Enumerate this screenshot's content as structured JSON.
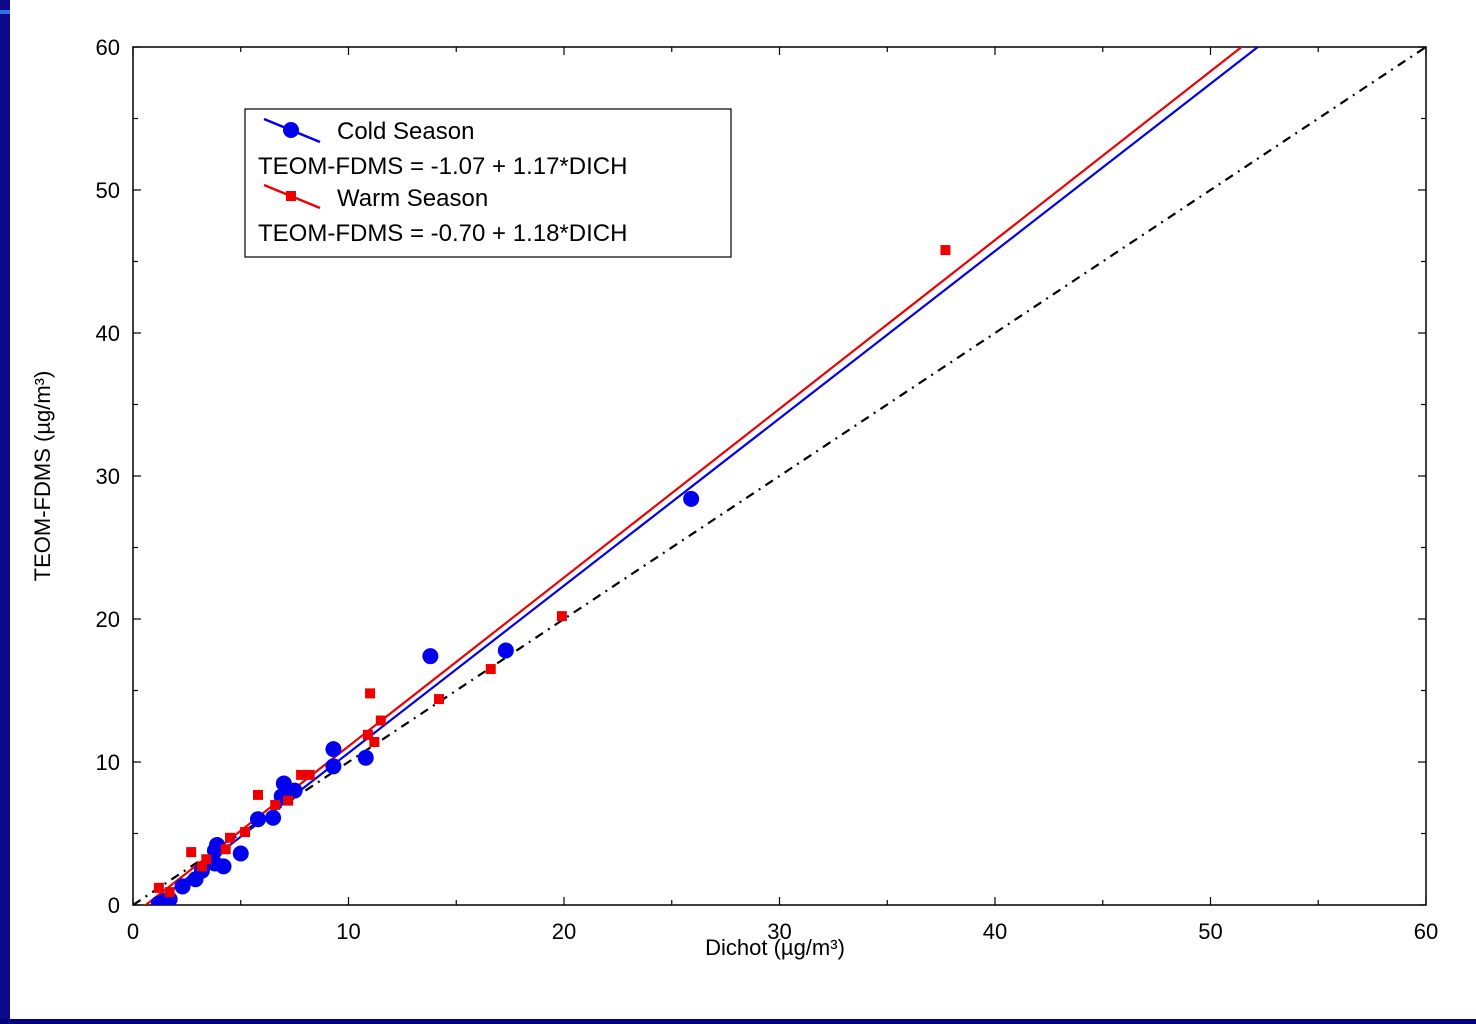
{
  "chart_data": {
    "type": "scatter",
    "xlabel": "Dichot (µg/m³)",
    "ylabel": "TEOM-FDMS (µg/m³)",
    "xlim": [
      0,
      60
    ],
    "ylim": [
      0,
      60
    ],
    "xticks": [
      0,
      10,
      20,
      30,
      40,
      50,
      60
    ],
    "yticks": [
      0,
      10,
      20,
      30,
      40,
      50,
      60
    ],
    "grid": false,
    "legend_position": "top-left",
    "series": [
      {
        "name": "Cold Season",
        "equation": "TEOM-FDMS = -1.07 + 1.17*DICH",
        "color": "#0000ee",
        "marker": "circle",
        "intercept": -1.07,
        "slope": 1.17,
        "points": [
          [
            1.2,
            0.1
          ],
          [
            1.5,
            0.3
          ],
          [
            1.7,
            0.4
          ],
          [
            2.3,
            1.3
          ],
          [
            2.9,
            1.8
          ],
          [
            3.2,
            2.4
          ],
          [
            3.8,
            2.9
          ],
          [
            3.8,
            3.8
          ],
          [
            3.9,
            4.2
          ],
          [
            4.2,
            2.7
          ],
          [
            5.0,
            3.6
          ],
          [
            5.8,
            6.0
          ],
          [
            6.5,
            6.1
          ],
          [
            6.9,
            7.6
          ],
          [
            7.0,
            8.5
          ],
          [
            7.5,
            8.0
          ],
          [
            9.3,
            9.7
          ],
          [
            9.3,
            10.9
          ],
          [
            10.8,
            10.3
          ],
          [
            13.8,
            17.4
          ],
          [
            17.3,
            17.8
          ],
          [
            25.9,
            28.4
          ]
        ]
      },
      {
        "name": "Warm Season",
        "equation": "TEOM-FDMS = -0.70 + 1.18*DICH",
        "color": "#ee0000",
        "marker": "square",
        "intercept": -0.7,
        "slope": 1.18,
        "points": [
          [
            1.2,
            1.2
          ],
          [
            1.7,
            0.9
          ],
          [
            2.7,
            3.7
          ],
          [
            3.2,
            2.7
          ],
          [
            3.4,
            3.2
          ],
          [
            4.3,
            3.9
          ],
          [
            4.5,
            4.7
          ],
          [
            5.2,
            5.1
          ],
          [
            5.8,
            7.7
          ],
          [
            6.6,
            7.0
          ],
          [
            7.2,
            7.3
          ],
          [
            7.8,
            9.1
          ],
          [
            8.2,
            9.1
          ],
          [
            10.9,
            11.9
          ],
          [
            11.0,
            14.8
          ],
          [
            11.2,
            11.4
          ],
          [
            11.5,
            12.9
          ],
          [
            14.2,
            14.4
          ],
          [
            16.6,
            16.5
          ],
          [
            19.9,
            20.2
          ],
          [
            37.7,
            45.8
          ]
        ]
      }
    ],
    "reference_line": {
      "style": "dash-dot",
      "color": "#000000",
      "intercept": 0,
      "slope": 1
    }
  }
}
